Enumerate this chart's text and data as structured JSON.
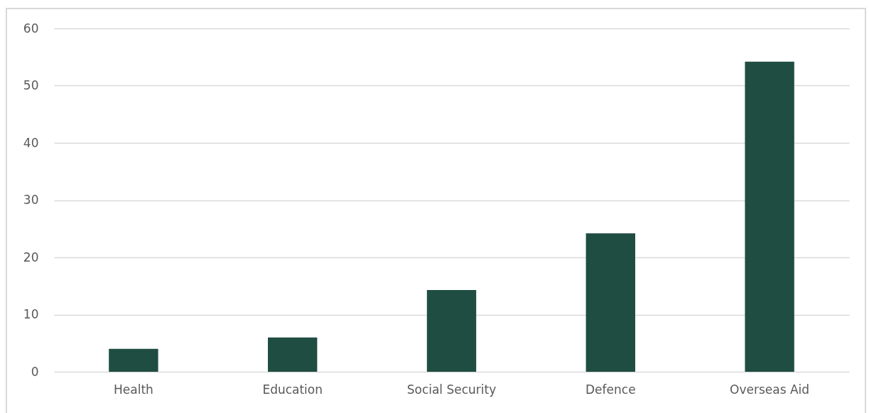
{
  "chart_data": {
    "type": "bar",
    "categories": [
      "Health",
      "Education",
      "Social Security",
      "Defence",
      "Overseas Aid"
    ],
    "values": [
      4.0,
      6.0,
      14.3,
      24.2,
      54.2
    ],
    "color": "#1f4d42",
    "ylim": [
      0,
      60
    ],
    "yticks": [
      0,
      10,
      20,
      30,
      40,
      50,
      60
    ],
    "grid": "y"
  }
}
